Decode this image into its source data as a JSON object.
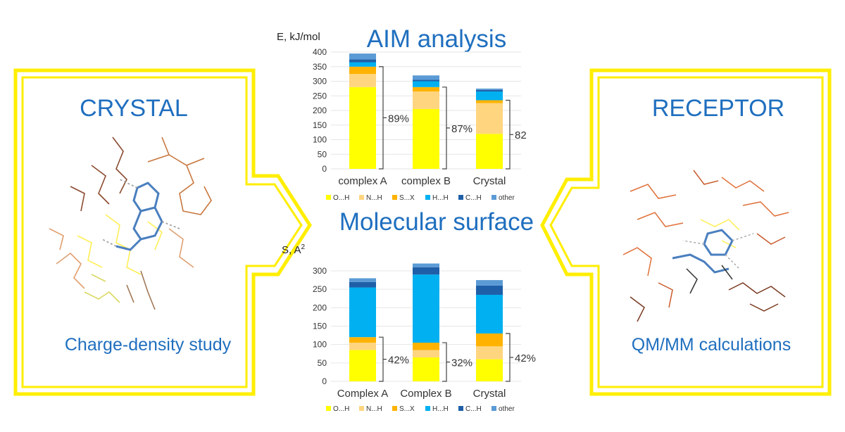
{
  "left_panel": {
    "title": "CRYSTAL",
    "caption": "Charge-density study"
  },
  "right_panel": {
    "title": "RECEPTOR",
    "caption": "QM/MM calculations"
  },
  "center": {
    "top_title": "AIM analysis",
    "bottom_title": "Molecular surface"
  },
  "colors": {
    "frame": "#ffee00",
    "title": "#1f6fbf",
    "O_H": "#ffff00",
    "N_H": "#ffd580",
    "S_X": "#ffb300",
    "H_H": "#00b0f0",
    "C_H": "#1f5fa8",
    "other": "#5b9bd5"
  },
  "chart_data": [
    {
      "type": "bar",
      "stacked": true,
      "ylabel": "E, kJ/mol",
      "ylim": [
        0,
        400
      ],
      "yticks": [
        0,
        50,
        100,
        150,
        200,
        250,
        300,
        350,
        400
      ],
      "categories": [
        "complex A",
        "complex B",
        "Crystal"
      ],
      "series": [
        {
          "name": "O...H",
          "values": [
            280,
            205,
            120
          ]
        },
        {
          "name": "N...H",
          "values": [
            45,
            60,
            105
          ]
        },
        {
          "name": "S...X",
          "values": [
            25,
            15,
            10
          ]
        },
        {
          "name": "H...H",
          "values": [
            15,
            20,
            30
          ]
        },
        {
          "name": "C...H",
          "values": [
            10,
            5,
            5
          ]
        },
        {
          "name": "other",
          "values": [
            20,
            15,
            5
          ]
        }
      ],
      "annotations": [
        "89%",
        "87%",
        "82"
      ],
      "legend_position": "bottom"
    },
    {
      "type": "bar",
      "stacked": true,
      "ylabel": "S, A",
      "ylabel_superscript": "2",
      "ylim": [
        0,
        300
      ],
      "yticks": [
        0,
        50,
        100,
        150,
        200,
        250,
        300
      ],
      "categories": [
        "Complex A",
        "Complex B",
        "Crystal"
      ],
      "series": [
        {
          "name": "O...H",
          "values": [
            85,
            65,
            60
          ]
        },
        {
          "name": "N...H",
          "values": [
            20,
            20,
            35
          ]
        },
        {
          "name": "S...X",
          "values": [
            15,
            20,
            35
          ]
        },
        {
          "name": "H...H",
          "values": [
            135,
            185,
            105
          ]
        },
        {
          "name": "C...H",
          "values": [
            15,
            20,
            25
          ]
        },
        {
          "name": "other",
          "values": [
            10,
            10,
            15
          ]
        }
      ],
      "annotations": [
        "42%",
        "32%",
        "42%"
      ],
      "legend_position": "bottom"
    }
  ]
}
